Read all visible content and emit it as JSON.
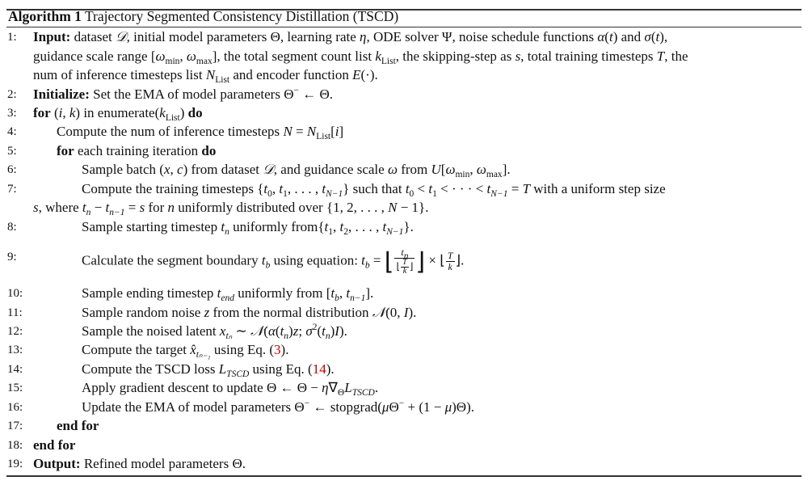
{
  "algorithm": {
    "label": "Algorithm 1",
    "title": "Trajectory Segmented Consistency Distillation (TSCD)"
  },
  "lines": [
    {
      "number": "1:",
      "level": 0,
      "rows": [
        [
          [
            "b",
            "Input:"
          ],
          [
            "t",
            " dataset "
          ],
          [
            "m",
            "𝒟"
          ],
          [
            "t",
            ", initial model parameters Θ, learning rate "
          ],
          [
            "m",
            "η"
          ],
          [
            "t",
            ", ODE solver Ψ, noise schedule functions "
          ],
          [
            "m",
            "α"
          ],
          [
            "t",
            "("
          ],
          [
            "m",
            "t"
          ],
          [
            "t",
            ") and "
          ],
          [
            "m",
            "σ"
          ],
          [
            "t",
            "("
          ],
          [
            "m",
            "t"
          ],
          [
            "t",
            "),"
          ]
        ],
        [
          [
            "t",
            "guidance scale range ["
          ],
          [
            "m",
            "ω"
          ],
          [
            "sub",
            "min"
          ],
          [
            "t",
            ", "
          ],
          [
            "m",
            "ω"
          ],
          [
            "sub",
            "max"
          ],
          [
            "t",
            "], the total segment count list "
          ],
          [
            "m",
            "k"
          ],
          [
            "sub",
            "List"
          ],
          [
            "t",
            ", the skipping-step as "
          ],
          [
            "m",
            "s"
          ],
          [
            "t",
            ", total training timesteps "
          ],
          [
            "m",
            "T"
          ],
          [
            "t",
            ", the"
          ]
        ],
        [
          [
            "t",
            "num of inference timesteps list "
          ],
          [
            "m",
            "N"
          ],
          [
            "sub",
            "List"
          ],
          [
            "t",
            " and encoder function "
          ],
          [
            "m",
            "E"
          ],
          [
            "t",
            "(·)."
          ]
        ]
      ]
    },
    {
      "number": "2:",
      "level": 0,
      "rows": [
        [
          [
            "b",
            "Initialize:"
          ],
          [
            "t",
            " Set the EMA of model parameters Θ"
          ],
          [
            "sup",
            "−"
          ],
          [
            "t",
            " ← Θ."
          ]
        ]
      ]
    },
    {
      "number": "3:",
      "level": 0,
      "rows": [
        [
          [
            "b",
            "for"
          ],
          [
            "t",
            " ("
          ],
          [
            "m",
            "i"
          ],
          [
            "t",
            ", "
          ],
          [
            "m",
            "k"
          ],
          [
            "t",
            ") in enumerate("
          ],
          [
            "m",
            "k"
          ],
          [
            "sub",
            "List"
          ],
          [
            "t",
            ") "
          ],
          [
            "b",
            "do"
          ]
        ]
      ]
    },
    {
      "number": "4:",
      "level": 1,
      "rows": [
        [
          [
            "t",
            "Compute the num of inference timesteps "
          ],
          [
            "m",
            "N"
          ],
          [
            "t",
            " = "
          ],
          [
            "m",
            "N"
          ],
          [
            "sub",
            "List"
          ],
          [
            "t",
            "["
          ],
          [
            "m",
            "i"
          ],
          [
            "t",
            "]"
          ]
        ]
      ]
    },
    {
      "number": "5:",
      "level": 1,
      "rows": [
        [
          [
            "b",
            "for"
          ],
          [
            "t",
            " each training iteration "
          ],
          [
            "b",
            "do"
          ]
        ]
      ]
    },
    {
      "number": "6:",
      "level": 2,
      "rows": [
        [
          [
            "t",
            "Sample batch ("
          ],
          [
            "m",
            "x"
          ],
          [
            "t",
            ", "
          ],
          [
            "m",
            "c"
          ],
          [
            "t",
            ") from dataset "
          ],
          [
            "m",
            "𝒟"
          ],
          [
            "t",
            ", and guidance scale "
          ],
          [
            "m",
            "ω"
          ],
          [
            "t",
            " from "
          ],
          [
            "m",
            "U"
          ],
          [
            "t",
            "["
          ],
          [
            "m",
            "ω"
          ],
          [
            "sub",
            "min"
          ],
          [
            "t",
            ", "
          ],
          [
            "m",
            "ω"
          ],
          [
            "sub",
            "max"
          ],
          [
            "t",
            "]."
          ]
        ]
      ]
    },
    {
      "number": "7:",
      "level": 2,
      "wrap_level": 0,
      "rows": [
        [
          [
            "t",
            "Compute the training timesteps {"
          ],
          [
            "m",
            "t"
          ],
          [
            "sub",
            "0"
          ],
          [
            "t",
            ", "
          ],
          [
            "m",
            "t"
          ],
          [
            "sub",
            "1"
          ],
          [
            "t",
            ", . . . , "
          ],
          [
            "m",
            "t"
          ],
          [
            "msub",
            "N−1"
          ],
          [
            "t",
            "} such that "
          ],
          [
            "m",
            "t"
          ],
          [
            "sub",
            "0"
          ],
          [
            "t",
            " < "
          ],
          [
            "m",
            "t"
          ],
          [
            "sub",
            "1"
          ],
          [
            "t",
            " < · · · < "
          ],
          [
            "m",
            "t"
          ],
          [
            "msub",
            "N−1"
          ],
          [
            "t",
            " = "
          ],
          [
            "m",
            "T"
          ],
          [
            "t",
            " with a uniform step size"
          ]
        ],
        [
          [
            "m",
            "s"
          ],
          [
            "t",
            ", where "
          ],
          [
            "m",
            "t"
          ],
          [
            "msub",
            "n"
          ],
          [
            "t",
            " − "
          ],
          [
            "m",
            "t"
          ],
          [
            "msub",
            "n−1"
          ],
          [
            "t",
            " = "
          ],
          [
            "m",
            "s"
          ],
          [
            "t",
            " for "
          ],
          [
            "m",
            "n"
          ],
          [
            "t",
            " uniformly distributed over {1, 2, . . . , "
          ],
          [
            "m",
            "N"
          ],
          [
            "t",
            " − 1}."
          ]
        ]
      ]
    },
    {
      "number": "8:",
      "level": 2,
      "rows": [
        [
          [
            "t",
            "Sample starting timestep "
          ],
          [
            "m",
            "t"
          ],
          [
            "msub",
            "n"
          ],
          [
            "t",
            " uniformly from{"
          ],
          [
            "m",
            "t"
          ],
          [
            "sub",
            "1"
          ],
          [
            "t",
            ", "
          ],
          [
            "m",
            "t"
          ],
          [
            "sub",
            "2"
          ],
          [
            "t",
            ", . . . , "
          ],
          [
            "m",
            "t"
          ],
          [
            "msub",
            "N−1"
          ],
          [
            "t",
            "}."
          ]
        ]
      ]
    },
    {
      "number": "9:",
      "level": 2,
      "rows": [
        [
          [
            "t",
            "Calculate the segment boundary "
          ],
          [
            "m",
            "t"
          ],
          [
            "msub",
            "b"
          ],
          [
            "t",
            " using equation: "
          ],
          [
            "m",
            "t"
          ],
          [
            "msub",
            "b"
          ],
          [
            "t",
            " = "
          ],
          [
            "big",
            "⌊"
          ],
          [
            "frac",
            [
              [
                "m",
                "t"
              ],
              [
                "msub",
                "n"
              ]
            ],
            [
              [
                "t",
                "⌊"
              ],
              [
                "frac",
                [
                  [
                    "m",
                    "T"
                  ]
                ],
                [
                  [
                    "m",
                    "k"
                  ]
                ]
              ],
              [
                "t",
                "⌋"
              ]
            ]
          ],
          [
            "big",
            "⌋"
          ],
          [
            "t",
            " × ⌊"
          ],
          [
            "frac",
            [
              [
                "m",
                "T"
              ]
            ],
            [
              [
                "m",
                "k"
              ]
            ]
          ],
          [
            "t",
            "⌋."
          ]
        ]
      ]
    },
    {
      "number": "10:",
      "level": 2,
      "rows": [
        [
          [
            "t",
            "Sample ending timestep "
          ],
          [
            "m",
            "t"
          ],
          [
            "msub",
            "end"
          ],
          [
            "t",
            " uniformly from ["
          ],
          [
            "m",
            "t"
          ],
          [
            "msub",
            "b"
          ],
          [
            "t",
            ", "
          ],
          [
            "m",
            "t"
          ],
          [
            "msub",
            "n−1"
          ],
          [
            "t",
            "]."
          ]
        ]
      ]
    },
    {
      "number": "11:",
      "level": 2,
      "rows": [
        [
          [
            "t",
            "Sample random noise "
          ],
          [
            "m",
            "z"
          ],
          [
            "t",
            " from the normal distribution "
          ],
          [
            "m",
            "𝒩"
          ],
          [
            "t",
            "(0, "
          ],
          [
            "m",
            "I"
          ],
          [
            "t",
            ")."
          ]
        ]
      ]
    },
    {
      "number": "12:",
      "level": 2,
      "rows": [
        [
          [
            "t",
            "Sample the noised latent "
          ],
          [
            "m",
            "x"
          ],
          [
            "msub",
            "tₙ"
          ],
          [
            "t",
            " ∼ "
          ],
          [
            "m",
            "𝒩"
          ],
          [
            "t",
            "("
          ],
          [
            "m",
            "α"
          ],
          [
            "t",
            "("
          ],
          [
            "m",
            "t"
          ],
          [
            "msub",
            "n"
          ],
          [
            "t",
            ")"
          ],
          [
            "m",
            "z"
          ],
          [
            "t",
            "; "
          ],
          [
            "m",
            "σ"
          ],
          [
            "sup",
            "2"
          ],
          [
            "t",
            "("
          ],
          [
            "m",
            "t"
          ],
          [
            "msub",
            "n"
          ],
          [
            "t",
            ")"
          ],
          [
            "m",
            "I"
          ],
          [
            "t",
            ")."
          ]
        ]
      ]
    },
    {
      "number": "13:",
      "level": 2,
      "rows": [
        [
          [
            "t",
            "Compute the target "
          ],
          [
            "m",
            "x̂"
          ],
          [
            "msub",
            "tₙ₋₁"
          ],
          [
            "t",
            " using Eq. ("
          ],
          [
            "ref",
            "3"
          ],
          [
            "t",
            ")."
          ]
        ]
      ]
    },
    {
      "number": "14:",
      "level": 2,
      "rows": [
        [
          [
            "t",
            "Compute the TSCD loss "
          ],
          [
            "m",
            "L"
          ],
          [
            "msub",
            "TSCD"
          ],
          [
            "t",
            " using Eq. ("
          ],
          [
            "ref",
            "14"
          ],
          [
            "t",
            ")."
          ]
        ]
      ]
    },
    {
      "number": "15:",
      "level": 2,
      "rows": [
        [
          [
            "t",
            "Apply gradient descent to update Θ ← Θ − "
          ],
          [
            "m",
            "η"
          ],
          [
            "t",
            "∇"
          ],
          [
            "sub",
            "Θ"
          ],
          [
            "m",
            "L"
          ],
          [
            "msub",
            "TSCD"
          ],
          [
            "t",
            "."
          ]
        ]
      ]
    },
    {
      "number": "16:",
      "level": 2,
      "rows": [
        [
          [
            "t",
            "Update the EMA of model parameters Θ"
          ],
          [
            "sup",
            "−"
          ],
          [
            "t",
            " ← stopgrad("
          ],
          [
            "m",
            "μ"
          ],
          [
            "t",
            "Θ"
          ],
          [
            "sup",
            "−"
          ],
          [
            "t",
            " + (1 − "
          ],
          [
            "m",
            "μ"
          ],
          [
            "t",
            ")Θ)."
          ]
        ]
      ]
    },
    {
      "number": "17:",
      "level": 1,
      "rows": [
        [
          [
            "b",
            "end for"
          ]
        ]
      ]
    },
    {
      "number": "18:",
      "level": 0,
      "rows": [
        [
          [
            "b",
            "end for"
          ]
        ]
      ]
    },
    {
      "number": "19:",
      "level": 0,
      "rows": [
        [
          [
            "b",
            "Output:"
          ],
          [
            "t",
            " Refined model parameters Θ."
          ]
        ]
      ]
    }
  ],
  "colors": {
    "reference_link": "#c00000",
    "rule": "#333333",
    "text": "#111111"
  }
}
